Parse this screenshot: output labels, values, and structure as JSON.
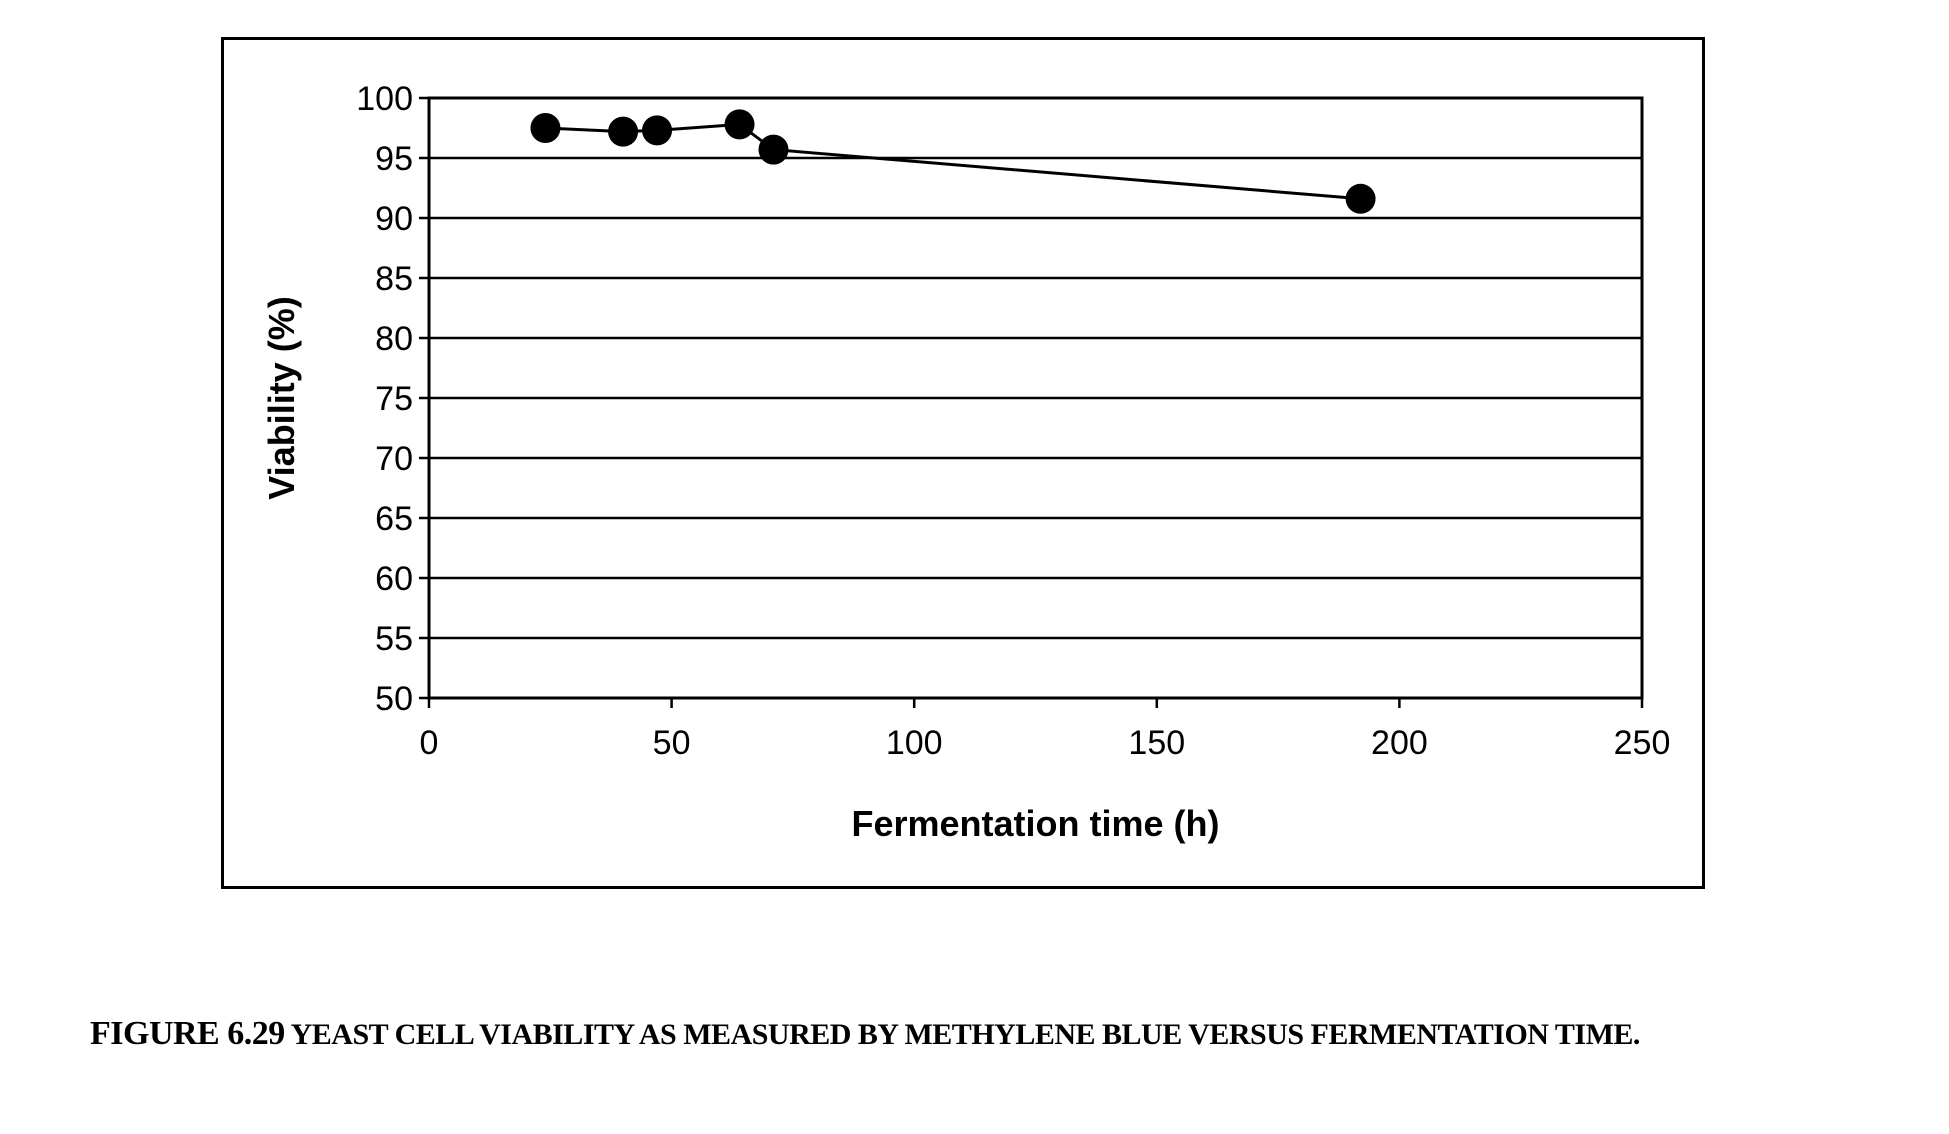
{
  "chart_data": {
    "type": "line",
    "xlabel": "Fermentation time (h)",
    "ylabel": "Viability (%)",
    "xlim": [
      0,
      250
    ],
    "ylim": [
      50,
      100
    ],
    "xticks": [
      0,
      50,
      100,
      150,
      200,
      250
    ],
    "yticks": [
      50,
      55,
      60,
      65,
      70,
      75,
      80,
      85,
      90,
      95,
      100
    ],
    "grid": true,
    "series": [
      {
        "name": "Viability",
        "x": [
          24,
          40,
          47,
          64,
          71,
          192
        ],
        "y": [
          97.5,
          97.2,
          97.3,
          97.8,
          95.7,
          91.6
        ]
      }
    ]
  },
  "caption": {
    "label": "Figure 6.29",
    "text": "Yeast cell viability as measured by methylene blue versus fermentation time."
  },
  "colors": {
    "line": "#000000",
    "marker": "#000000",
    "grid": "#000000"
  }
}
